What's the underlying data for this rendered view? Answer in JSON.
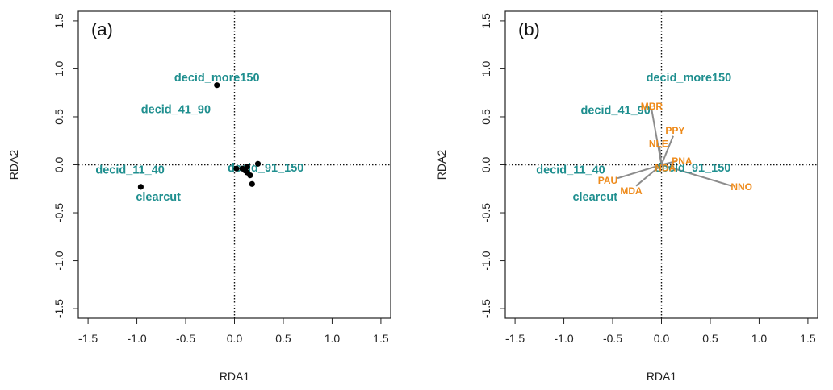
{
  "colors": {
    "site_label": "#1f8f8f",
    "species_label": "#ee8a1a",
    "arrow": "#8c8c8c",
    "point": "#000000",
    "axis": "#222222"
  },
  "chart_data": [
    {
      "type": "scatter",
      "panel_label": "(a)",
      "xlabel": "RDA1",
      "ylabel": "RDA2",
      "xlim": [
        -1.6,
        1.6
      ],
      "ylim": [
        -1.6,
        1.6
      ],
      "xticks": [
        "-1.5",
        "-1.0",
        "-0.5",
        "0.0",
        "0.5",
        "1.0",
        "1.5"
      ],
      "yticks": [
        "-1.5",
        "-1.0",
        "-0.5",
        "0.0",
        "0.5",
        "1.0",
        "1.5"
      ],
      "reference_lines": {
        "x": 0,
        "y": 0,
        "style": "dotted"
      },
      "site_labels": [
        {
          "label": "decid_more150",
          "x": -0.18,
          "y": 0.9
        },
        {
          "label": "decid_41_90",
          "x": -0.6,
          "y": 0.57
        },
        {
          "label": "decid_11_40",
          "x": -1.07,
          "y": -0.06
        },
        {
          "label": "clearcut",
          "x": -0.78,
          "y": -0.34
        },
        {
          "label": "decid_91_150",
          "x": 0.32,
          "y": -0.04
        }
      ],
      "points": [
        {
          "x": -0.18,
          "y": 0.83
        },
        {
          "x": -0.96,
          "y": -0.23
        },
        {
          "x": 0.02,
          "y": -0.04
        },
        {
          "x": 0.08,
          "y": -0.04
        },
        {
          "x": 0.13,
          "y": -0.02
        },
        {
          "x": 0.13,
          "y": -0.08
        },
        {
          "x": 0.16,
          "y": -0.11
        },
        {
          "x": 0.18,
          "y": -0.2
        },
        {
          "x": 0.24,
          "y": 0.01
        },
        {
          "x": 0.11,
          "y": -0.06
        }
      ]
    },
    {
      "type": "biplot",
      "panel_label": "(b)",
      "xlabel": "RDA1",
      "ylabel": "RDA2",
      "xlim": [
        -1.6,
        1.6
      ],
      "ylim": [
        -1.6,
        1.6
      ],
      "xticks": [
        "-1.5",
        "-1.0",
        "-0.5",
        "0.0",
        "0.5",
        "1.0",
        "1.5"
      ],
      "yticks": [
        "-1.5",
        "-1.0",
        "-0.5",
        "0.0",
        "0.5",
        "1.0",
        "1.5"
      ],
      "reference_lines": {
        "x": 0,
        "y": 0,
        "style": "dotted"
      },
      "site_labels": [
        {
          "label": "decid_more150",
          "x": 0.28,
          "y": 0.9
        },
        {
          "label": "decid_41_90",
          "x": -0.47,
          "y": 0.56
        },
        {
          "label": "decid_11_40",
          "x": -0.93,
          "y": -0.06
        },
        {
          "label": "clearcut",
          "x": -0.68,
          "y": -0.34
        },
        {
          "label": "decid_91_150",
          "x": 0.32,
          "y": -0.04
        }
      ],
      "species": [
        {
          "label": "MBR",
          "x": -0.1,
          "y": 0.6
        },
        {
          "label": "PPY",
          "x": 0.14,
          "y": 0.35
        },
        {
          "label": "NLE",
          "x": -0.03,
          "y": 0.21
        },
        {
          "label": "PNA",
          "x": 0.21,
          "y": 0.03
        },
        {
          "label": "NDA",
          "x": 0.04,
          "y": -0.04
        },
        {
          "label": "PAU",
          "x": -0.55,
          "y": -0.17
        },
        {
          "label": "MDA",
          "x": -0.31,
          "y": -0.28
        },
        {
          "label": "NNO",
          "x": 0.82,
          "y": -0.24
        }
      ],
      "vectors": [
        {
          "species": "MBR",
          "x": -0.1,
          "y": 0.57
        },
        {
          "species": "PPY",
          "x": 0.12,
          "y": 0.3
        },
        {
          "species": "NLE",
          "x": -0.02,
          "y": 0.18
        },
        {
          "species": "PNA",
          "x": 0.16,
          "y": 0.04
        },
        {
          "species": "NDA",
          "x": 0.03,
          "y": -0.02
        },
        {
          "species": "PAU",
          "x": -0.45,
          "y": -0.14
        },
        {
          "species": "MDA",
          "x": -0.26,
          "y": -0.22
        },
        {
          "species": "NNO",
          "x": 0.72,
          "y": -0.22
        }
      ]
    }
  ]
}
